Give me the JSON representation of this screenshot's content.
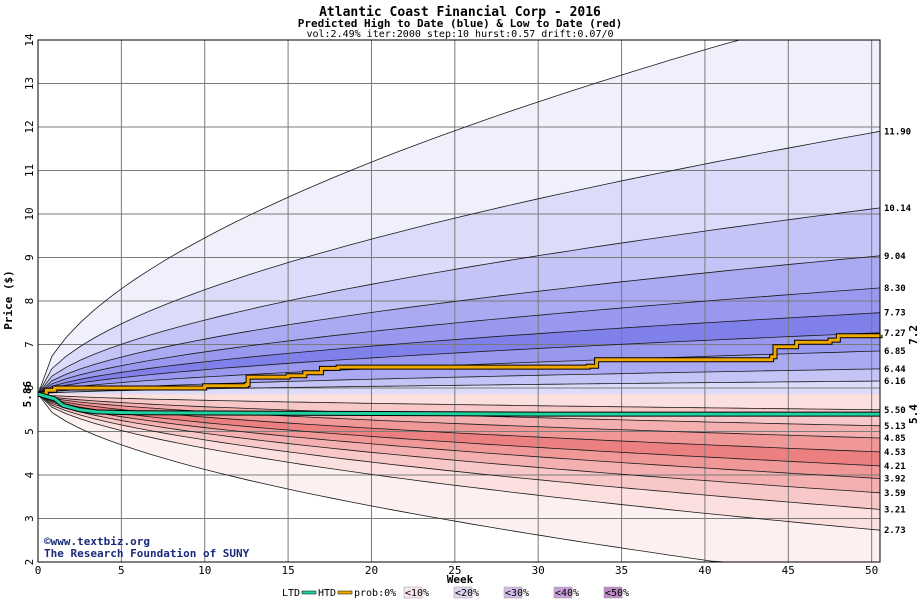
{
  "chart_data": {
    "type": "area",
    "title": "Atlantic Coast Financial Corp - 2016",
    "subtitle": "Predicted High to Date (blue) &  Low to Date (red)",
    "params": "vol:2.49% iter:2000 step:10 hurst:0.57 drift:0.07/0",
    "xlabel": "Week",
    "ylabel": "Price ($)",
    "xlim": [
      0,
      50.5
    ],
    "ylim": [
      2,
      14
    ],
    "x_ticks": [
      0,
      5,
      10,
      15,
      20,
      25,
      30,
      35,
      40,
      45,
      50
    ],
    "y_ticks": [
      2,
      3,
      4,
      5,
      6,
      7,
      8,
      9,
      10,
      11,
      12,
      13,
      14
    ],
    "grid": true,
    "start_price": 5.86,
    "start_label": "5.86",
    "htd_end_label": "7.2",
    "ltd_end_label": "5.4",
    "colors": {
      "htd": "#f0a800",
      "ltd": "#20d0a0",
      "htd_label": "#a07800",
      "ltd_label": "#10a080"
    },
    "high_quantiles": [
      {
        "prob": "0%",
        "end": 14.9,
        "fill": "#f0f0fc"
      },
      {
        "prob": "10%",
        "end": 11.9,
        "label": "11.90",
        "fill": "#dcdcfa"
      },
      {
        "prob": "20%",
        "end": 10.14,
        "label": "10.14",
        "fill": "#c4c4f6"
      },
      {
        "prob": "30%",
        "end": 9.04,
        "label": "9.04",
        "fill": "#aaaaf2"
      },
      {
        "prob": "40%",
        "end": 8.3,
        "label": "8.30",
        "fill": "#9898ee"
      },
      {
        "prob": "50%",
        "end": 7.73,
        "label": "7.73",
        "fill": "#8080ea"
      },
      {
        "prob": "60%",
        "end": 7.27,
        "label": "7.27",
        "fill": "#9898ee"
      },
      {
        "prob": "70%",
        "end": 6.85,
        "label": "6.85",
        "fill": "#aaaaf2"
      },
      {
        "prob": "80%",
        "end": 6.44,
        "label": "6.44",
        "fill": "#c4c4f6"
      },
      {
        "prob": "90%",
        "end": 6.16,
        "label": "6.16",
        "fill": "#dcdcfa"
      }
    ],
    "low_quantiles": [
      {
        "prob": "0%",
        "end": 1.5,
        "fill": "#fdf0f0"
      },
      {
        "prob": "10%",
        "end": 2.73,
        "label": "2.73",
        "fill": "#fce0e0"
      },
      {
        "prob": "20%",
        "end": 3.21,
        "label": "3.21",
        "fill": "#f8c8c8"
      },
      {
        "prob": "30%",
        "end": 3.59,
        "label": "3.59",
        "fill": "#f4b0b0"
      },
      {
        "prob": "40%",
        "end": 3.92,
        "label": "3.92",
        "fill": "#f09898"
      },
      {
        "prob": "50%",
        "end": 4.21,
        "label": "4.21",
        "fill": "#ec8080"
      },
      {
        "prob": "60%",
        "end": 4.53,
        "label": "4.53",
        "fill": "#f09898"
      },
      {
        "prob": "70%",
        "end": 4.85,
        "label": "4.85",
        "fill": "#f4b0b0"
      },
      {
        "prob": "80%",
        "end": 5.13,
        "label": "5.13",
        "fill": "#f8c8c8"
      },
      {
        "prob": "90%",
        "end": 5.5,
        "label": "5.50",
        "fill": "#fce0e0"
      }
    ],
    "htd_path": [
      [
        0,
        5.86
      ],
      [
        0.5,
        5.95
      ],
      [
        1,
        6.0
      ],
      [
        5,
        6.0
      ],
      [
        10,
        6.05
      ],
      [
        12.5,
        6.08
      ],
      [
        12.6,
        6.25
      ],
      [
        15,
        6.28
      ],
      [
        16,
        6.35
      ],
      [
        17,
        6.45
      ],
      [
        18,
        6.48
      ],
      [
        33,
        6.5
      ],
      [
        33.5,
        6.65
      ],
      [
        44,
        6.72
      ],
      [
        44.2,
        6.95
      ],
      [
        45.5,
        7.05
      ],
      [
        47.5,
        7.1
      ],
      [
        48,
        7.2
      ],
      [
        50.5,
        7.22
      ]
    ],
    "ltd_path": [
      [
        0,
        5.86
      ],
      [
        1,
        5.75
      ],
      [
        1.5,
        5.6
      ],
      [
        2.5,
        5.5
      ],
      [
        3.5,
        5.45
      ],
      [
        6,
        5.43
      ],
      [
        15,
        5.42
      ],
      [
        30,
        5.4
      ],
      [
        50.5,
        5.4
      ]
    ],
    "legend": {
      "ltd": "LTD",
      "htd": "HTD",
      "prob_prefix": "prob:0%",
      "items": [
        "<10%",
        "<20%",
        "<30%",
        "<40%",
        "<50%"
      ],
      "item_colors": [
        "#f8e4f0",
        "#e0d4f0",
        "#d4bce8",
        "#c8a0d8",
        "#c08ac8"
      ]
    },
    "credits": [
      "©www.textbiz.org",
      "The Research Foundation of SUNY"
    ]
  }
}
